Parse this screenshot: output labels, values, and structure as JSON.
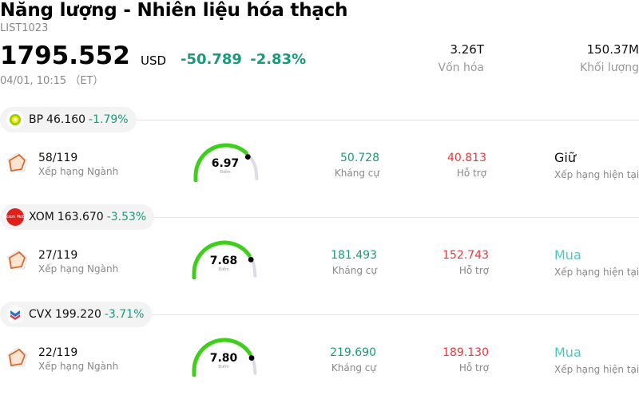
{
  "header": {
    "title": "Năng lượng - Nhiên liệu hóa thạch",
    "code": "LIST1023",
    "price": "1795.552",
    "currency": "USD",
    "change": "-50.789",
    "change_pct": "-2.83%",
    "time": "04/01, 10:15 （ET）",
    "stats": [
      {
        "value": "3.26T",
        "label": "Vốn hóa"
      },
      {
        "value": "150.37M",
        "label": "Khối lượng"
      }
    ]
  },
  "colors": {
    "accent_green": "#1a9a78",
    "support_red": "#e5393d",
    "buy": "#48c9c0",
    "gauge_fill": "#3ecf1a",
    "gauge_track": "#dcdce6"
  },
  "stocks": [
    {
      "ticker": "BP",
      "price": "46.160",
      "pct": "-1.79%",
      "logo_icon": "bp-helios-icon",
      "rank": "58/119",
      "rank_label": "Xếp hạng Ngành",
      "score": "6.97",
      "score_label": "Điểm",
      "score_fraction": 0.697,
      "resistance": "50.728",
      "resistance_label": "Kháng cự",
      "support": "40.813",
      "support_label": "Hỗ trợ",
      "rating": "Giữ",
      "rating_label": "Xếp hạng hiện tại"
    },
    {
      "ticker": "XOM",
      "price": "163.670",
      "pct": "-3.53%",
      "logo_icon": "exxonmobil-icon",
      "logo_text": "Exxon Mobil",
      "rank": "27/119",
      "rank_label": "Xếp hạng Ngành",
      "score": "7.68",
      "score_label": "Điểm",
      "score_fraction": 0.768,
      "resistance": "181.493",
      "resistance_label": "Kháng cự",
      "support": "152.743",
      "support_label": "Hỗ trợ",
      "rating": "Mua",
      "rating_label": "Xếp hạng hiện tại"
    },
    {
      "ticker": "CVX",
      "price": "199.220",
      "pct": "-3.71%",
      "logo_icon": "chevron-icon",
      "rank": "22/119",
      "rank_label": "Xếp hạng Ngành",
      "score": "7.80",
      "score_label": "Điểm",
      "score_fraction": 0.78,
      "resistance": "219.690",
      "resistance_label": "Kháng cự",
      "support": "189.130",
      "support_label": "Hỗ trợ",
      "rating": "Mua",
      "rating_label": "Xếp hạng hiện tại"
    }
  ]
}
